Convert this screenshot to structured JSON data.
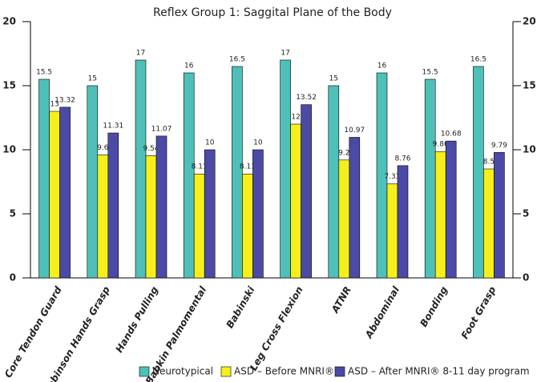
{
  "chart_data": {
    "type": "bar",
    "title": "Reflex Group 1: Saggital Plane of the Body",
    "categories": [
      "Core Tendon Guard",
      "Robinson Hands Grasp",
      "Hands Pulling",
      "Babkin Palmomental",
      "Babinski",
      "Leg Cross Flexion",
      "ATNR",
      "Abdominal",
      "Bonding",
      "Foot Grasp"
    ],
    "series": [
      {
        "name": "Neurotypical",
        "color": "#4fc0b8",
        "values": [
          15.5,
          15,
          17,
          16,
          16.5,
          17,
          15,
          16,
          15.5,
          16.5
        ]
      },
      {
        "name": "ASD – Before MNRI®",
        "color": "#f7ef1c",
        "values": [
          13,
          9.6,
          9.54,
          8.11,
          8.11,
          12,
          9.2,
          7.33,
          9.86,
          8.5
        ]
      },
      {
        "name": "ASD – After MNRI® 8-11 day program",
        "color": "#4b4ba6",
        "values": [
          13.32,
          11.31,
          11.07,
          10,
          10,
          13.52,
          10.97,
          8.76,
          10.68,
          9.79
        ]
      }
    ],
    "ylim": [
      0,
      20
    ],
    "yticks": [
      0,
      5,
      10,
      15,
      20
    ],
    "y2lim": [
      0,
      20
    ],
    "y2ticks": [
      0,
      5,
      10,
      15,
      20
    ],
    "legend": "bottom"
  }
}
